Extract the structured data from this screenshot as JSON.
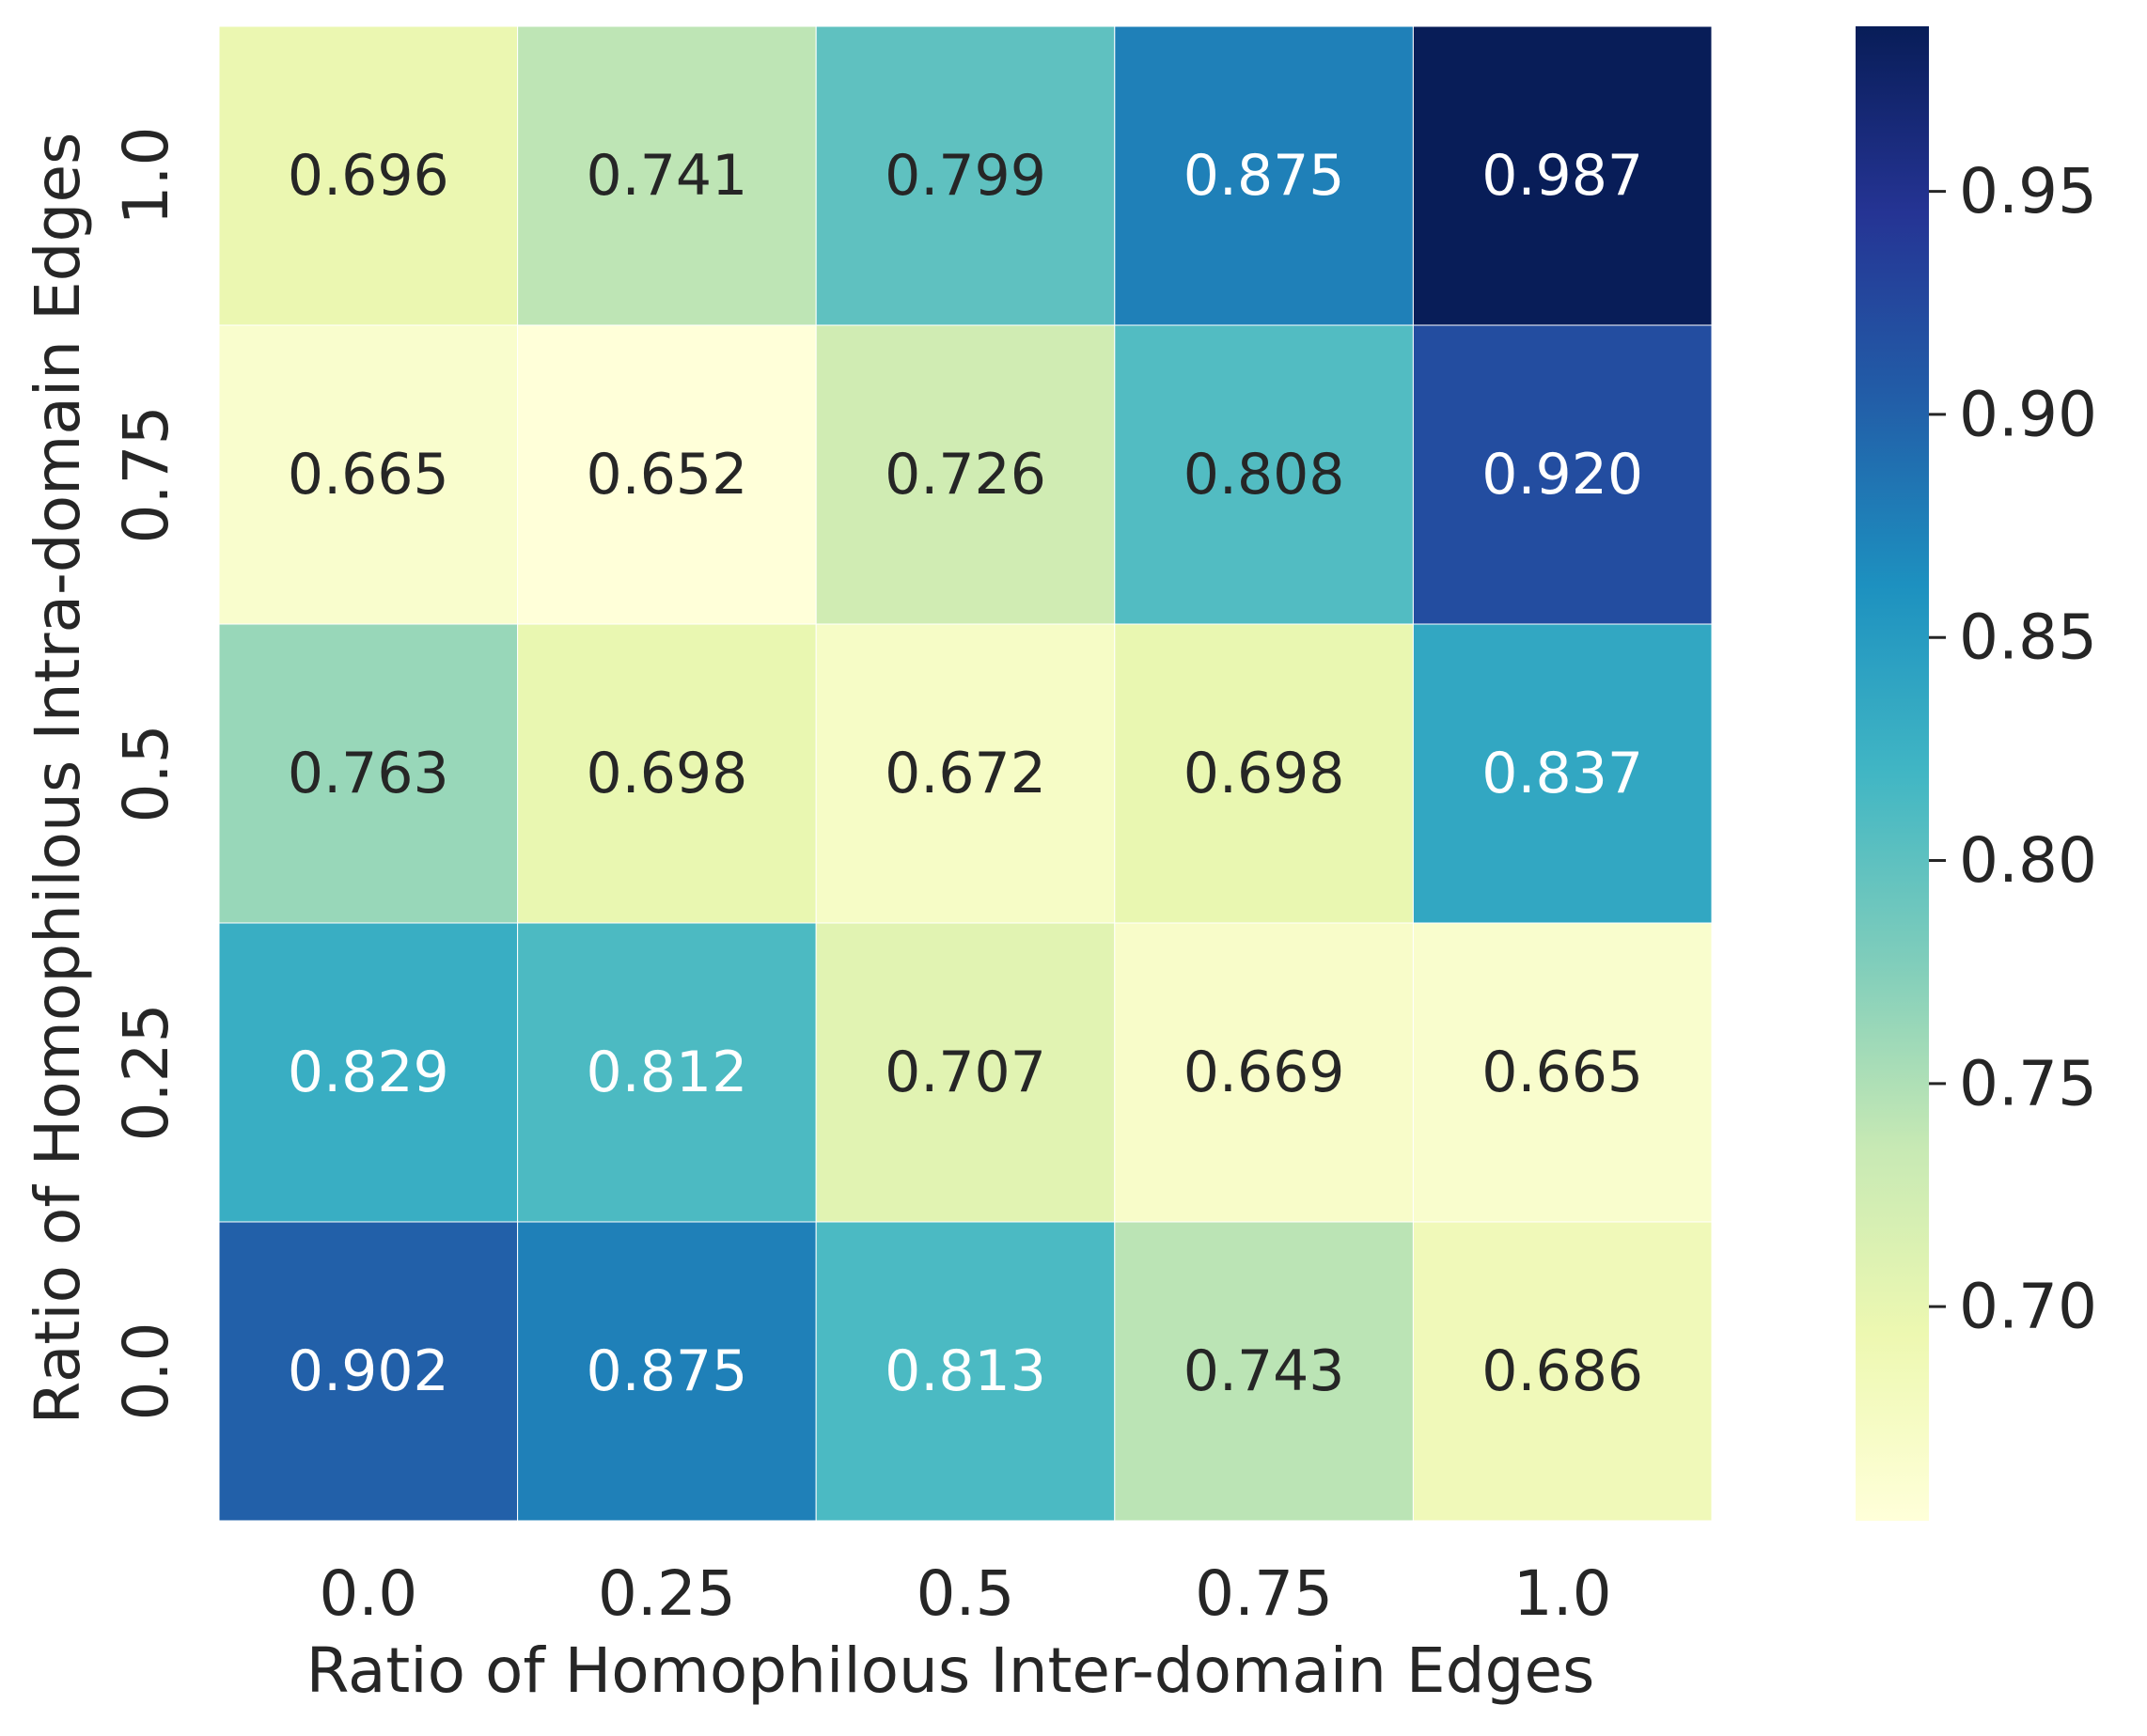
{
  "chart_data": {
    "type": "heatmap",
    "title": "",
    "xlabel": "Ratio of Homophilous Inter-domain Edges",
    "ylabel": "Ratio of Homophilous Intra-domain Edges",
    "x_categories": [
      "0.0",
      "0.25",
      "0.5",
      "0.75",
      "1.0"
    ],
    "y_categories": [
      "1.0",
      "0.75",
      "0.5",
      "0.25",
      "0.0"
    ],
    "values": [
      [
        0.696,
        0.741,
        0.799,
        0.875,
        0.987
      ],
      [
        0.665,
        0.652,
        0.726,
        0.808,
        0.92
      ],
      [
        0.763,
        0.698,
        0.672,
        0.698,
        0.837
      ],
      [
        0.829,
        0.812,
        0.707,
        0.669,
        0.665
      ],
      [
        0.902,
        0.875,
        0.813,
        0.743,
        0.686
      ]
    ],
    "value_format": "0.000",
    "colormap": "YlGnBu",
    "colorbar": {
      "range": [
        0.652,
        0.987
      ],
      "ticks": [
        "0.70",
        "0.75",
        "0.80",
        "0.85",
        "0.90",
        "0.95"
      ]
    },
    "annotation_colors": {
      "dark": "#262626",
      "light": "#ffffff"
    }
  }
}
